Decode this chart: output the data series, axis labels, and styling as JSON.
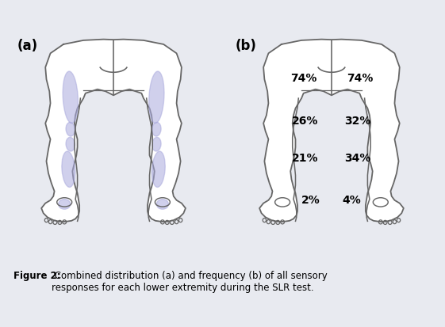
{
  "label_a": "(a)",
  "label_b": "(b)",
  "caption_bold": "Figure 2:",
  "caption_rest": " Combined distribution (a) and frequency (b) of all sensory\nresponses for each lower extremity during the SLR test.",
  "shaded_color": "#aaaadd",
  "shaded_alpha": 0.55,
  "leg_outline_color": "#666666",
  "background_color": "#e8eaf0",
  "panel_bg": "#eef0f5",
  "label_fontsize": 12,
  "caption_fontsize": 8.5,
  "percent_fontsize": 10,
  "percent_labels_b": {
    "top_left": "74%",
    "top_right": "74%",
    "mid_left": "26%",
    "mid_right": "32%",
    "lower_left": "21%",
    "lower_right": "34%",
    "bot_left": "2%",
    "bot_right": "4%"
  }
}
